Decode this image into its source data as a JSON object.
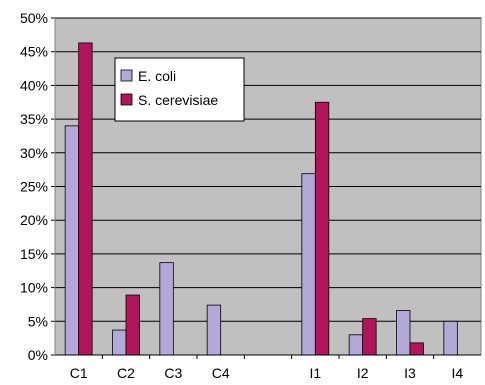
{
  "chart_data": {
    "type": "bar",
    "categories": [
      "C1",
      "C2",
      "C3",
      "C4",
      "",
      "I1",
      "I2",
      "I3",
      "I4"
    ],
    "series": [
      {
        "name": "E. coli",
        "color": "#b3a9d9",
        "values": [
          34.0,
          3.7,
          13.7,
          7.4,
          null,
          26.9,
          3.0,
          6.6,
          5.0
        ]
      },
      {
        "name": "S. cerevisiae",
        "color": "#b0175a",
        "values": [
          46.3,
          8.9,
          null,
          null,
          null,
          37.5,
          5.4,
          1.8,
          null
        ]
      }
    ],
    "ylim": [
      0,
      50
    ],
    "yticks": [
      0,
      5,
      10,
      15,
      20,
      25,
      30,
      35,
      40,
      45,
      50
    ],
    "ytick_format": "{v}%",
    "title": "",
    "xlabel": "",
    "ylabel": "",
    "grid": true,
    "legend_position": "top-left",
    "plot_background": "#c0c0c0"
  }
}
